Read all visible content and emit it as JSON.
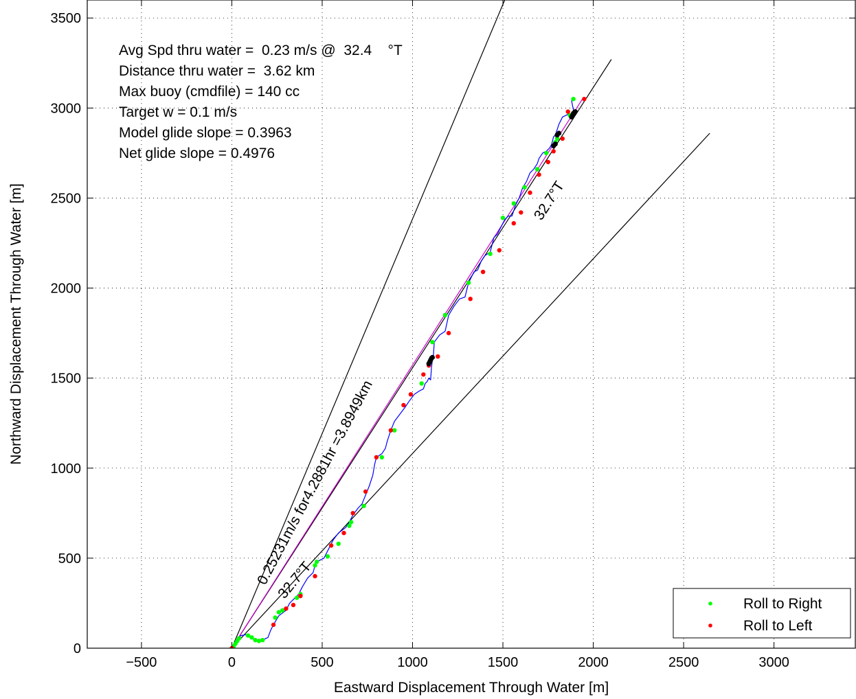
{
  "chart_data": {
    "type": "scatter",
    "xlabel": "Eastward Displacement Through Water [m]",
    "ylabel": "Northward Displacement Through Water [m]",
    "xlim": [
      -800,
      3450
    ],
    "ylim": [
      0,
      3600
    ],
    "xticks": [
      -500,
      0,
      500,
      1000,
      1500,
      2000,
      2500,
      3000
    ],
    "yticks": [
      0,
      500,
      1000,
      1500,
      2000,
      2500,
      3000,
      3500
    ],
    "grid": true,
    "grid_style": "dotted",
    "legend_position": "bottom-right",
    "legend": [
      {
        "label": "Roll to Right",
        "color": "#00ff00"
      },
      {
        "label": "Roll to Left",
        "color": "#ff0000"
      }
    ],
    "info_text": [
      "Avg Spd thru water =  0.23 m/s @  32.4    °T",
      "Distance thru water =  3.62 km",
      "Max buoy (cmdfile) = 140 cc",
      "Target w = 0.1 m/s",
      "Model glide slope = 0.3963",
      "Net glide slope = 0.4976"
    ],
    "annotations": {
      "rate_label": "0.25231m/s for4.2881hr =3.8949km",
      "heading_label_upper": "32.7°T",
      "heading_label_lower": "32.7°T"
    },
    "reference_lines": [
      {
        "name": "steep-bound",
        "color": "#000000",
        "x": [
          0,
          1510
        ],
        "y": [
          0,
          3600
        ]
      },
      {
        "name": "heading-line",
        "color": "#000000",
        "x": [
          0,
          2100
        ],
        "y": [
          0,
          3270
        ]
      },
      {
        "name": "mean-heading",
        "color": "#cc00cc",
        "x": [
          0,
          1940
        ],
        "y": [
          0,
          3050
        ]
      },
      {
        "name": "shallow-bound",
        "color": "#000000",
        "x": [
          0,
          2645
        ],
        "y": [
          0,
          2860
        ]
      }
    ],
    "track": {
      "color": "#0000ff",
      "x": [
        0,
        20,
        50,
        80,
        110,
        140,
        170,
        200,
        215,
        230,
        260,
        300,
        320,
        340,
        370,
        390,
        420,
        450,
        460,
        470,
        510,
        540,
        560,
        590,
        630,
        650,
        670,
        700,
        720,
        740,
        760,
        780,
        790,
        800,
        830,
        850,
        860,
        880,
        900,
        930,
        960,
        980,
        1010,
        1040,
        1060,
        1070,
        1080,
        1090,
        1100,
        1105,
        1110,
        1115,
        1120,
        1150,
        1180,
        1200,
        1230,
        1260,
        1290,
        1310,
        1340,
        1360,
        1380,
        1400,
        1430,
        1450,
        1470,
        1490,
        1510,
        1530,
        1550,
        1570,
        1590,
        1610,
        1630,
        1650,
        1670,
        1690,
        1700,
        1720,
        1740,
        1760,
        1770,
        1780,
        1790,
        1800,
        1810,
        1820,
        1830,
        1850,
        1870,
        1880,
        1890,
        1900,
        1890,
        1880,
        1900
      ],
      "y": [
        0,
        40,
        70,
        75,
        55,
        40,
        45,
        60,
        100,
        130,
        180,
        210,
        250,
        270,
        300,
        340,
        390,
        420,
        460,
        480,
        500,
        560,
        600,
        640,
        670,
        700,
        740,
        780,
        800,
        850,
        900,
        960,
        1020,
        1060,
        1080,
        1110,
        1150,
        1210,
        1260,
        1300,
        1340,
        1370,
        1410,
        1430,
        1440,
        1470,
        1480,
        1500,
        1490,
        1560,
        1600,
        1620,
        1700,
        1740,
        1760,
        1850,
        1900,
        1940,
        1950,
        2030,
        2090,
        2100,
        2150,
        2180,
        2200,
        2280,
        2300,
        2340,
        2380,
        2400,
        2400,
        2460,
        2500,
        2560,
        2590,
        2640,
        2660,
        2690,
        2720,
        2750,
        2760,
        2780,
        2800,
        2840,
        2850,
        2880,
        2910,
        2930,
        2950,
        2960,
        2970,
        2960,
        2960,
        2980,
        2990,
        3040,
        3050
      ]
    },
    "roll_right_points": {
      "x": [
        10,
        20,
        30,
        40,
        90,
        110,
        130,
        150,
        170,
        240,
        260,
        280,
        360,
        380,
        460,
        470,
        530,
        590,
        650,
        660,
        730,
        830,
        900,
        1050,
        1110,
        1180,
        1310,
        1430,
        1500,
        1560,
        1620,
        1690,
        1740,
        1790,
        1800,
        1810,
        1870,
        1890
      ],
      "y": [
        10,
        25,
        40,
        55,
        70,
        60,
        45,
        40,
        45,
        170,
        200,
        210,
        280,
        300,
        460,
        480,
        510,
        580,
        680,
        700,
        790,
        1060,
        1210,
        1470,
        1700,
        1850,
        2030,
        2190,
        2390,
        2470,
        2560,
        2660,
        2750,
        2810,
        2830,
        2860,
        2960,
        3050
      ]
    },
    "roll_left_points": {
      "x": [
        0,
        230,
        300,
        340,
        380,
        460,
        550,
        620,
        670,
        740,
        800,
        880,
        950,
        990,
        1060,
        1090,
        1140,
        1200,
        1320,
        1390,
        1480,
        1560,
        1600,
        1650,
        1700,
        1750,
        1780,
        1830,
        1860,
        1950
      ],
      "y": [
        0,
        130,
        220,
        240,
        290,
        400,
        570,
        640,
        750,
        870,
        1060,
        1210,
        1350,
        1410,
        1520,
        1570,
        1620,
        1750,
        1940,
        2090,
        2210,
        2360,
        2420,
        2530,
        2630,
        2700,
        2760,
        2830,
        2980,
        3050
      ]
    },
    "surface_points": {
      "color": "#000000",
      "x": [
        1090,
        1095,
        1100,
        1105,
        1110,
        1780,
        1790,
        1800,
        1810,
        1880,
        1885,
        1890,
        1895,
        1900
      ],
      "y": [
        1580,
        1590,
        1600,
        1610,
        1615,
        2790,
        2800,
        2850,
        2860,
        2950,
        2960,
        2970,
        2975,
        2980
      ]
    }
  }
}
